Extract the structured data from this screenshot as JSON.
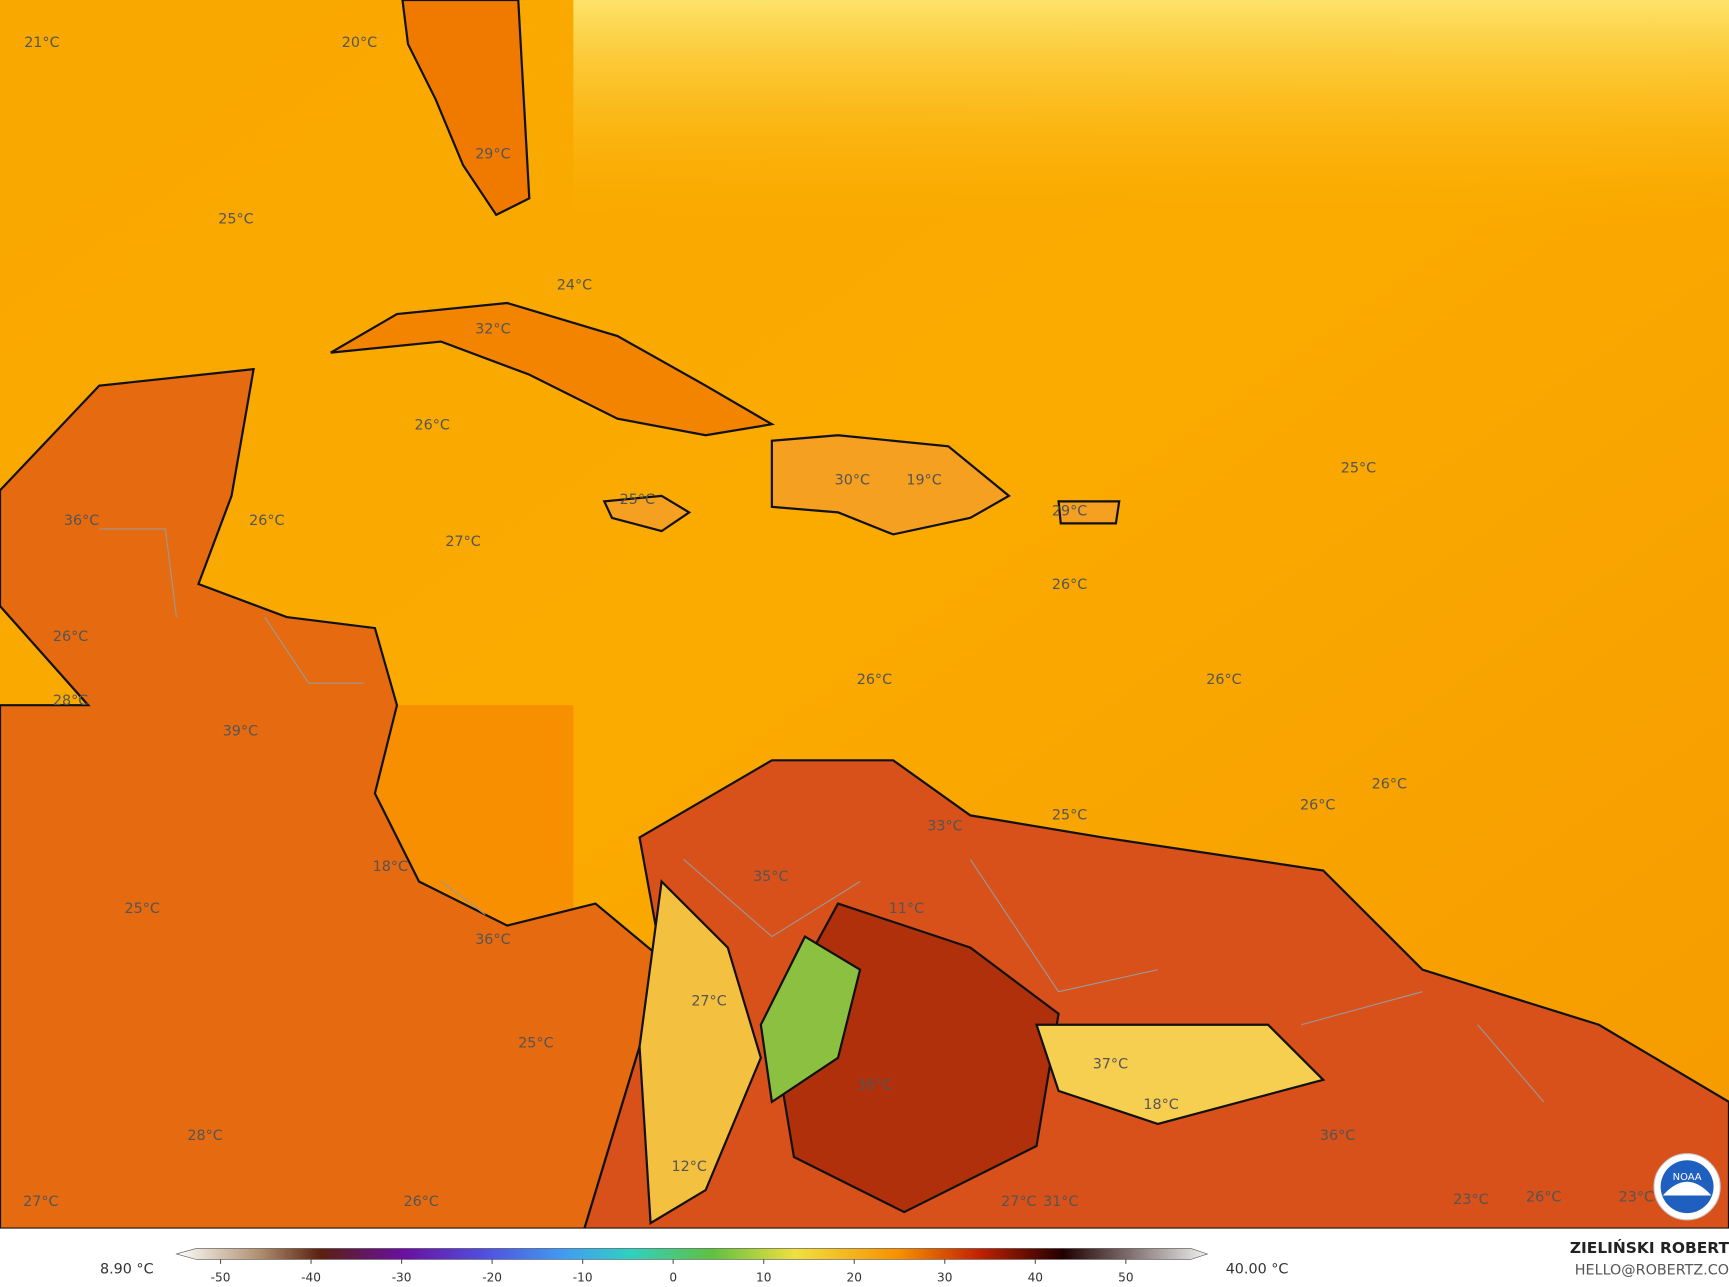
{
  "map": {
    "labels": [
      "21°C",
      "20°C",
      "29°C",
      "25°C",
      "24°C",
      "32°C",
      "26°C",
      "36°C",
      "26°C",
      "27°C",
      "25°C",
      "30°C",
      "19°C",
      "29°C",
      "25°C",
      "26°C",
      "26°C",
      "28°C",
      "39°C",
      "26°C",
      "26°C",
      "26°C",
      "26°C",
      "25°C",
      "33°C",
      "35°C",
      "18°C",
      "11°C",
      "25°C",
      "36°C",
      "27°C",
      "25°C",
      "37°C",
      "36°C",
      "18°C",
      "36°C",
      "28°C",
      "12°C",
      "27°C",
      "26°C",
      "27°C",
      "31°C",
      "23°C",
      "26°C",
      "23°C"
    ],
    "colorbar": {
      "min_label": "8.90 °C",
      "max_label": "40.00 °C",
      "ticks": [
        -50,
        -40,
        -30,
        -20,
        -10,
        0,
        10,
        20,
        30,
        40,
        50
      ]
    },
    "credit": {
      "name": "ZIELIŃSKI ROBERT",
      "contact": "HELLO@ROBERTZ.CO"
    },
    "logo": "NOAA"
  }
}
